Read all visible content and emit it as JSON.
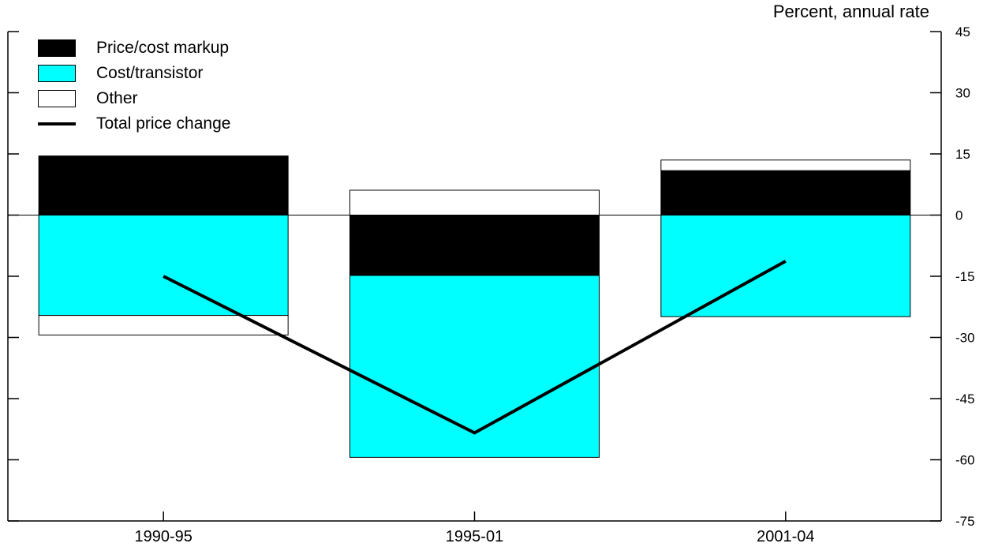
{
  "chart_data": {
    "type": "bar",
    "stacked": true,
    "unit_label": "Percent, annual rate",
    "title": "",
    "xlabel": "",
    "ylabel": "",
    "categories": [
      "1990-95",
      "1995-01",
      "2001-04"
    ],
    "ylim": [
      -75,
      45
    ],
    "yticks": [
      45,
      30,
      15,
      0,
      -15,
      -30,
      -45,
      -60,
      -75
    ],
    "y_axis_side": "right",
    "grid": false,
    "legend_position": "top-left",
    "series": [
      {
        "name": "Price/cost markup",
        "kind": "bar",
        "color": "#000000",
        "values": [
          14.5,
          -14.8,
          10.9
        ]
      },
      {
        "name": "Cost/transistor",
        "kind": "bar",
        "color": "#00ffff",
        "values": [
          -24.6,
          -44.6,
          -24.9
        ]
      },
      {
        "name": "Other",
        "kind": "bar",
        "color": "#ffffff",
        "values": [
          -4.8,
          6.1,
          2.6
        ]
      },
      {
        "name": "Total price change",
        "kind": "line",
        "color": "#000000",
        "values": [
          -15.0,
          -53.4,
          -11.3
        ]
      }
    ]
  }
}
